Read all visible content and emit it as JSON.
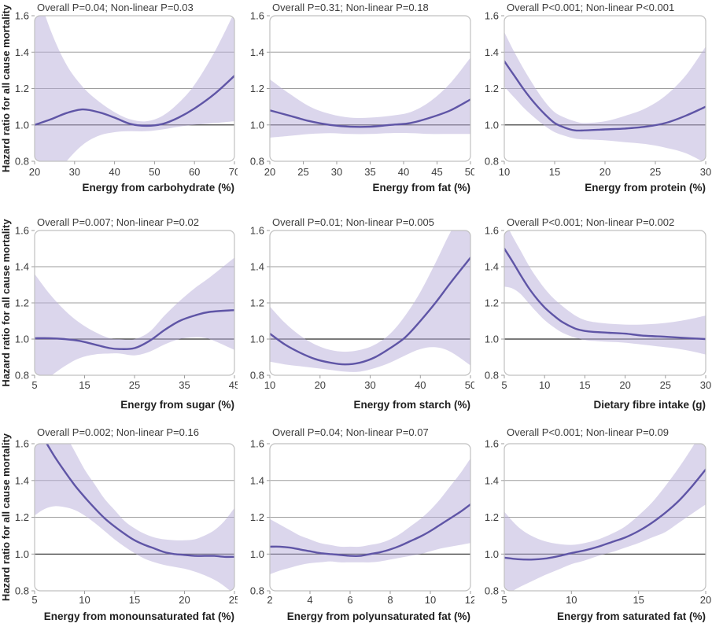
{
  "figure": {
    "ylabel": "Hazard ratio for all cause mortality",
    "ylim": [
      0.8,
      1.6
    ],
    "yticks": [
      0.8,
      1.0,
      1.2,
      1.4,
      1.6
    ],
    "ytick_labels": [
      "0.8",
      "1.0",
      "1.2",
      "1.4",
      "1.6"
    ],
    "reference_line": 1.0,
    "grid_lines": [
      1.2,
      1.4
    ],
    "colors": {
      "curve": "#5f55a6",
      "band": "#b7aeda",
      "grid": "#9e9e9e",
      "reference": "#2b2b2b",
      "frame": "#c0c0c0",
      "text": "#3c3c3c",
      "label": "#1f1f1f"
    }
  },
  "chart_data": [
    {
      "type": "line",
      "title": "Overall P=0.04; Non-linear P=0.03",
      "xlabel": "Energy from carbohydrate (%)",
      "xlim": [
        20,
        70
      ],
      "xticks": [
        20,
        30,
        40,
        50,
        60,
        70
      ],
      "x": [
        20,
        24,
        28,
        32,
        36,
        40,
        44,
        48,
        52,
        56,
        60,
        65,
        70
      ],
      "series": [
        {
          "name": "hazard ratio",
          "y": [
            1.0,
            1.03,
            1.065,
            1.085,
            1.07,
            1.04,
            1.005,
            0.995,
            1.005,
            1.04,
            1.09,
            1.17,
            1.27
          ]
        },
        {
          "name": "95% CI upper",
          "y": [
            1.78,
            1.52,
            1.33,
            1.21,
            1.13,
            1.07,
            1.03,
            1.02,
            1.05,
            1.12,
            1.22,
            1.4,
            1.62
          ]
        },
        {
          "name": "95% CI lower",
          "y": [
            0.55,
            0.68,
            0.8,
            0.89,
            0.94,
            0.96,
            0.965,
            0.965,
            0.975,
            0.99,
            1.0,
            1.01,
            1.02
          ]
        }
      ]
    },
    {
      "type": "line",
      "title": "Overall P=0.31; Non-linear P=0.18",
      "xlabel": "Energy from fat (%)",
      "xlim": [
        20,
        50
      ],
      "xticks": [
        20,
        25,
        30,
        35,
        40,
        45,
        50
      ],
      "x": [
        20,
        23,
        26,
        29,
        32,
        35,
        38,
        41,
        44,
        47,
        50
      ],
      "series": [
        {
          "name": "hazard ratio",
          "y": [
            1.08,
            1.05,
            1.02,
            1.0,
            0.99,
            0.99,
            1.0,
            1.01,
            1.04,
            1.08,
            1.14
          ]
        },
        {
          "name": "95% CI upper",
          "y": [
            1.25,
            1.17,
            1.1,
            1.06,
            1.04,
            1.04,
            1.05,
            1.07,
            1.13,
            1.23,
            1.37
          ]
        },
        {
          "name": "95% CI lower",
          "y": [
            0.93,
            0.94,
            0.95,
            0.955,
            0.95,
            0.95,
            0.955,
            0.955,
            0.95,
            0.95,
            0.95
          ]
        }
      ]
    },
    {
      "type": "line",
      "title": "Overall P<0.001; Non-linear P<0.001",
      "xlabel": "Energy from protein (%)",
      "xlim": [
        10,
        30
      ],
      "xticks": [
        10,
        15,
        20,
        25,
        30
      ],
      "x": [
        10,
        11,
        12,
        13,
        14,
        15,
        16,
        17,
        18,
        20,
        22,
        24,
        26,
        28,
        30
      ],
      "series": [
        {
          "name": "hazard ratio",
          "y": [
            1.35,
            1.27,
            1.19,
            1.12,
            1.06,
            1.01,
            0.985,
            0.97,
            0.97,
            0.975,
            0.98,
            0.99,
            1.01,
            1.05,
            1.1
          ]
        },
        {
          "name": "95% CI upper",
          "y": [
            1.51,
            1.4,
            1.3,
            1.21,
            1.13,
            1.07,
            1.04,
            1.02,
            1.01,
            1.02,
            1.05,
            1.09,
            1.16,
            1.27,
            1.43
          ]
        },
        {
          "name": "95% CI lower",
          "y": [
            1.21,
            1.15,
            1.09,
            1.04,
            0.995,
            0.96,
            0.94,
            0.925,
            0.92,
            0.915,
            0.905,
            0.895,
            0.875,
            0.845,
            0.79
          ]
        }
      ]
    },
    {
      "type": "line",
      "title": "Overall P=0.007; Non-linear P=0.02",
      "xlabel": "Energy from sugar (%)",
      "xlim": [
        5,
        45
      ],
      "xticks": [
        5,
        15,
        25,
        35,
        45
      ],
      "x": [
        5,
        8,
        11,
        14,
        17,
        20,
        22,
        25,
        28,
        31,
        34,
        37,
        40,
        45
      ],
      "series": [
        {
          "name": "hazard ratio",
          "y": [
            1.005,
            1.005,
            1.0,
            0.99,
            0.97,
            0.95,
            0.945,
            0.95,
            0.99,
            1.05,
            1.1,
            1.13,
            1.15,
            1.16
          ]
        },
        {
          "name": "95% CI upper",
          "y": [
            1.36,
            1.25,
            1.16,
            1.09,
            1.04,
            1.005,
            1.0,
            1.0,
            1.04,
            1.13,
            1.21,
            1.28,
            1.34,
            1.45
          ]
        },
        {
          "name": "95% CI lower",
          "y": [
            0.72,
            0.79,
            0.85,
            0.895,
            0.915,
            0.92,
            0.92,
            0.91,
            0.93,
            0.97,
            1.0,
            1.01,
            1.0,
            0.94
          ]
        }
      ]
    },
    {
      "type": "line",
      "title": "Overall P=0.01; Non-linear P=0.005",
      "xlabel": "Energy from starch (%)",
      "xlim": [
        10,
        50
      ],
      "xticks": [
        10,
        20,
        30,
        40,
        50
      ],
      "x": [
        10,
        13,
        16,
        19,
        22,
        25,
        28,
        31,
        34,
        37,
        40,
        43,
        46,
        50
      ],
      "series": [
        {
          "name": "hazard ratio",
          "y": [
            1.03,
            0.97,
            0.925,
            0.89,
            0.87,
            0.86,
            0.87,
            0.9,
            0.95,
            1.01,
            1.1,
            1.2,
            1.31,
            1.45
          ]
        },
        {
          "name": "95% CI upper",
          "y": [
            1.18,
            1.09,
            1.02,
            0.97,
            0.94,
            0.93,
            0.94,
            0.97,
            1.03,
            1.13,
            1.26,
            1.42,
            1.59,
            1.78
          ]
        },
        {
          "name": "95% CI lower",
          "y": [
            0.875,
            0.86,
            0.85,
            0.84,
            0.83,
            0.82,
            0.82,
            0.84,
            0.87,
            0.91,
            0.945,
            0.955,
            0.93,
            0.855
          ]
        }
      ]
    },
    {
      "type": "line",
      "title": "Overall P<0.001; Non-linear P=0.002",
      "xlabel": "Dietary fibre intake (g)",
      "xlim": [
        5,
        30
      ],
      "xticks": [
        5,
        10,
        15,
        20,
        25,
        30
      ],
      "x": [
        5,
        6,
        7,
        8,
        9,
        10,
        11,
        12,
        13,
        14,
        15,
        16,
        18,
        20,
        22,
        24,
        26,
        28,
        30
      ],
      "series": [
        {
          "name": "hazard ratio",
          "y": [
            1.5,
            1.43,
            1.355,
            1.285,
            1.225,
            1.175,
            1.135,
            1.1,
            1.075,
            1.055,
            1.045,
            1.04,
            1.035,
            1.03,
            1.02,
            1.015,
            1.01,
            1.005,
            1.0
          ]
        },
        {
          "name": "95% CI upper",
          "y": [
            1.66,
            1.57,
            1.49,
            1.41,
            1.34,
            1.28,
            1.23,
            1.19,
            1.155,
            1.125,
            1.105,
            1.095,
            1.085,
            1.08,
            1.08,
            1.085,
            1.095,
            1.11,
            1.13
          ]
        },
        {
          "name": "95% CI lower",
          "y": [
            1.29,
            1.28,
            1.25,
            1.2,
            1.15,
            1.105,
            1.07,
            1.04,
            1.02,
            1.005,
            0.995,
            0.99,
            0.985,
            0.98,
            0.97,
            0.96,
            0.95,
            0.935,
            0.915
          ]
        }
      ]
    },
    {
      "type": "line",
      "title": "Overall P=0.002; Non-linear P=0.16",
      "xlabel": "Energy from monounsaturated fat (%)",
      "xlim": [
        5,
        25
      ],
      "xticks": [
        5,
        10,
        15,
        20,
        25
      ],
      "x": [
        5,
        6,
        7,
        8,
        9,
        10,
        11,
        12,
        13,
        14,
        15,
        16,
        17,
        18,
        19,
        20,
        21,
        22,
        23,
        24,
        25
      ],
      "series": [
        {
          "name": "hazard ratio",
          "y": [
            1.71,
            1.62,
            1.53,
            1.45,
            1.375,
            1.31,
            1.25,
            1.195,
            1.15,
            1.11,
            1.075,
            1.05,
            1.03,
            1.01,
            1.0,
            0.995,
            0.99,
            0.99,
            0.99,
            0.985,
            0.985
          ]
        },
        {
          "name": "95% CI upper",
          "y": [
            1.98,
            1.88,
            1.77,
            1.66,
            1.56,
            1.46,
            1.38,
            1.3,
            1.24,
            1.18,
            1.14,
            1.11,
            1.09,
            1.08,
            1.075,
            1.075,
            1.08,
            1.1,
            1.13,
            1.18,
            1.25
          ]
        },
        {
          "name": "95% CI lower",
          "y": [
            1.21,
            1.245,
            1.26,
            1.255,
            1.24,
            1.21,
            1.17,
            1.125,
            1.08,
            1.04,
            1.005,
            0.975,
            0.955,
            0.94,
            0.93,
            0.92,
            0.905,
            0.885,
            0.86,
            0.825,
            0.78
          ]
        }
      ]
    },
    {
      "type": "line",
      "title": "Overall P=0.04; Non-linear P=0.07",
      "xlabel": "Energy from polyunsaturated fat (%)",
      "xlim": [
        2,
        12
      ],
      "xticks": [
        2,
        4,
        6,
        8,
        10,
        12
      ],
      "x": [
        2,
        2.5,
        3,
        3.5,
        4,
        4.5,
        5,
        5.5,
        6,
        6.5,
        7,
        7.5,
        8,
        8.5,
        9,
        9.5,
        10,
        10.5,
        11,
        11.5,
        12
      ],
      "series": [
        {
          "name": "hazard ratio",
          "y": [
            1.04,
            1.04,
            1.035,
            1.025,
            1.015,
            1.005,
            1.0,
            0.995,
            0.99,
            0.99,
            1.0,
            1.01,
            1.025,
            1.045,
            1.07,
            1.095,
            1.125,
            1.16,
            1.195,
            1.23,
            1.27
          ]
        },
        {
          "name": "95% CI upper",
          "y": [
            1.19,
            1.16,
            1.13,
            1.1,
            1.08,
            1.06,
            1.05,
            1.04,
            1.04,
            1.04,
            1.05,
            1.06,
            1.08,
            1.11,
            1.15,
            1.19,
            1.24,
            1.3,
            1.37,
            1.44,
            1.52
          ]
        },
        {
          "name": "95% CI lower",
          "y": [
            0.89,
            0.91,
            0.925,
            0.94,
            0.95,
            0.955,
            0.96,
            0.955,
            0.955,
            0.955,
            0.955,
            0.96,
            0.97,
            0.98,
            0.99,
            1.0,
            1.015,
            1.03,
            1.04,
            1.05,
            1.06
          ]
        }
      ]
    },
    {
      "type": "line",
      "title": "Overall P<0.001; Non-linear P=0.09",
      "xlabel": "Energy from saturated fat (%)",
      "xlim": [
        5,
        20
      ],
      "xticks": [
        5,
        10,
        15,
        20
      ],
      "x": [
        5,
        6,
        7,
        8,
        9,
        10,
        11,
        12,
        13,
        14,
        15,
        16,
        17,
        18,
        19,
        20
      ],
      "series": [
        {
          "name": "hazard ratio",
          "y": [
            0.98,
            0.972,
            0.97,
            0.975,
            0.988,
            1.005,
            1.02,
            1.04,
            1.065,
            1.09,
            1.125,
            1.17,
            1.225,
            1.29,
            1.37,
            1.46
          ]
        },
        {
          "name": "95% CI upper",
          "y": [
            1.23,
            1.15,
            1.1,
            1.07,
            1.055,
            1.05,
            1.06,
            1.08,
            1.11,
            1.15,
            1.21,
            1.28,
            1.37,
            1.47,
            1.58,
            1.7
          ]
        },
        {
          "name": "95% CI lower",
          "y": [
            0.77,
            0.815,
            0.85,
            0.885,
            0.915,
            0.945,
            0.965,
            0.99,
            1.01,
            1.035,
            1.06,
            1.09,
            1.12,
            1.17,
            1.22,
            1.27
          ]
        }
      ]
    }
  ]
}
